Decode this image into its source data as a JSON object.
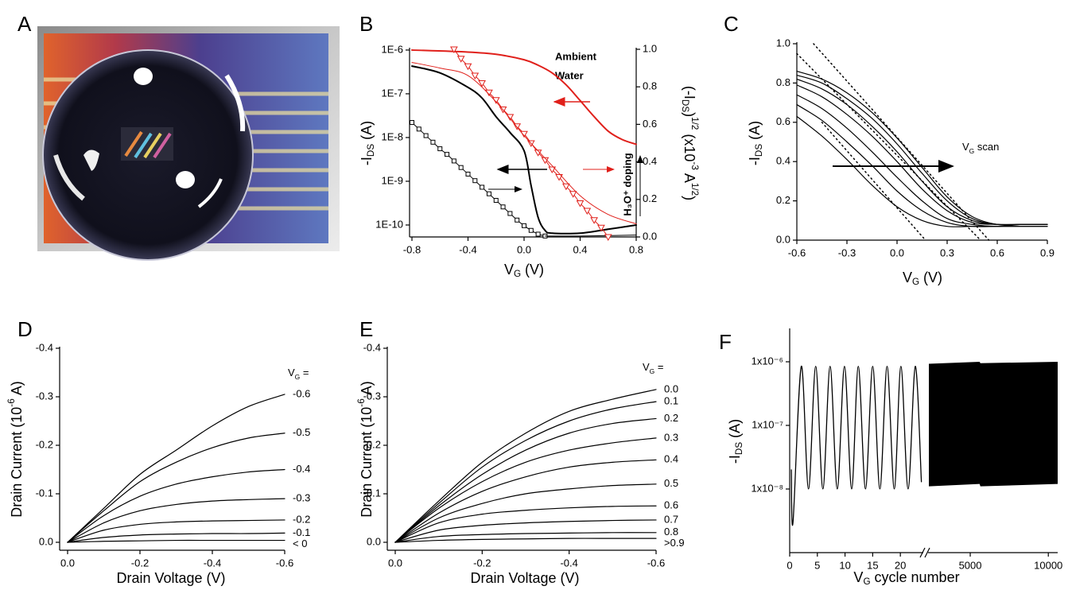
{
  "panel_labels": [
    "A",
    "B",
    "C",
    "D",
    "E",
    "F"
  ],
  "chart_data": [
    {
      "type": "line",
      "log_y": true,
      "smooth": true,
      "xlabel": [
        {
          "text": "V"
        },
        {
          "sub": "G"
        },
        {
          "text": " (V)"
        }
      ],
      "ylabel": [
        {
          "text": "-I"
        },
        {
          "sub": "DS"
        },
        {
          "text": " (A)"
        }
      ],
      "y2label": [
        {
          "text": "(-I"
        },
        {
          "sub": "DS"
        },
        {
          "text": ")"
        },
        {
          "sup": "1/2"
        },
        {
          "text": " (x10"
        },
        {
          "sup": "-3"
        },
        {
          "text": " A"
        },
        {
          "sup": "1/2"
        },
        {
          "text": ")"
        }
      ],
      "xlim": [
        -0.8,
        0.8
      ],
      "xticks": [
        -0.8,
        -0.4,
        {
          "value": 0,
          "label": "0.0"
        },
        0.4,
        0.8
      ],
      "ylim": [
        5.33e-11,
        1.04e-06
      ],
      "yticks": [
        {
          "value": 1e-10,
          "label": "1E-10"
        },
        {
          "value": 1e-09,
          "label": "1E-9"
        },
        {
          "value": 1e-08,
          "label": "1E-8"
        },
        {
          "value": 1e-07,
          "label": "1E-7"
        },
        {
          "value": 1e-06,
          "label": "1E-6"
        }
      ],
      "y2lim": [
        0,
        1.0
      ],
      "y2ticks": [
        {
          "value": 0,
          "label": "0.0"
        },
        0.2,
        0.4,
        0.6,
        0.8,
        {
          "value": 1,
          "label": "1.0"
        }
      ],
      "annotations": [
        {
          "text": "Ambient",
          "color": "#000000"
        },
        {
          "text": "Water",
          "color": "#e0201b"
        },
        {
          "text": "H₃O⁺ doping",
          "color": "#000000"
        }
      ],
      "series": [
        {
          "color": "#000000",
          "line_width": 2,
          "x": [
            -0.8,
            -0.6,
            -0.4,
            -0.3,
            -0.2,
            -0.1,
            0,
            0.05,
            0.1,
            0.15,
            0.2,
            0.4,
            0.6,
            0.8
          ],
          "values": [
            4.3e-07,
            3e-07,
            1.4e-07,
            8e-08,
            3e-08,
            1.3e-08,
            5e-09,
            8e-10,
            1.5e-10,
            7.5e-11,
            6.5e-11,
            6.5e-11,
            8e-11,
            1e-10
          ]
        },
        {
          "color": "#e0201b",
          "line_width": 2,
          "x": [
            -0.8,
            -0.4,
            -0.2,
            0,
            0.1,
            0.2,
            0.3,
            0.4,
            0.5,
            0.6,
            0.7,
            0.8
          ],
          "values": [
            1e-06,
            9e-07,
            8e-07,
            6e-07,
            4.5e-07,
            3e-07,
            1.6e-07,
            7e-08,
            3e-08,
            1.4e-08,
            9e-09,
            7e-09
          ]
        },
        {
          "color": "#000000",
          "line_width": 1,
          "axis": "y2",
          "marker": "square",
          "x": [
            -0.8,
            -0.75,
            -0.7,
            -0.65,
            -0.6,
            -0.55,
            -0.5,
            -0.45,
            -0.4,
            -0.35,
            -0.3,
            -0.25,
            -0.2,
            -0.15,
            -0.1,
            -0.05,
            0,
            0.05,
            0.1,
            0.15
          ],
          "values": [
            0.61,
            0.575,
            0.54,
            0.505,
            0.47,
            0.44,
            0.405,
            0.37,
            0.335,
            0.3,
            0.265,
            0.23,
            0.195,
            0.16,
            0.125,
            0.09,
            0.06,
            0.035,
            0.015,
            0.005
          ]
        },
        {
          "color": "#000000",
          "line_width": 1,
          "axis": "y2",
          "x": [
            0.15,
            0.4,
            0.8
          ],
          "values": [
            0.005,
            0.005,
            0.01
          ]
        },
        {
          "color": "#e0201b",
          "line_width": 1,
          "axis": "y2",
          "marker": "triangle",
          "x": [
            -0.5,
            -0.45,
            -0.4,
            -0.35,
            -0.3,
            -0.25,
            -0.2,
            -0.15,
            -0.1,
            -0.05,
            0,
            0.05,
            0.1,
            0.15,
            0.2,
            0.25,
            0.3,
            0.35,
            0.4,
            0.45,
            0.5,
            0.55,
            0.6
          ],
          "values": [
            1.0,
            0.95,
            0.91,
            0.86,
            0.82,
            0.77,
            0.73,
            0.68,
            0.64,
            0.59,
            0.55,
            0.5,
            0.45,
            0.41,
            0.36,
            0.32,
            0.27,
            0.23,
            0.18,
            0.14,
            0.09,
            0.05,
            0.0
          ]
        },
        {
          "color": "#e0201b",
          "line_width": 1,
          "axis": "y2",
          "x": [
            -0.8,
            -0.6,
            -0.4,
            -0.2,
            0,
            0.2,
            0.4,
            0.6,
            0.8
          ],
          "values": [
            0.93,
            0.9,
            0.86,
            0.72,
            0.54,
            0.38,
            0.22,
            0.12,
            0.07
          ]
        }
      ]
    },
    {
      "type": "line",
      "smooth": true,
      "xlabel": [
        {
          "text": "V"
        },
        {
          "sub": "G"
        },
        {
          "text": " (V)"
        }
      ],
      "ylabel": [
        {
          "text": "-I"
        },
        {
          "sub": "DS"
        },
        {
          "text": " (A)"
        }
      ],
      "xlim": [
        -0.6,
        0.9
      ],
      "xticks": [
        -0.6,
        -0.3,
        {
          "value": 0,
          "label": "0.0"
        },
        0.3,
        0.6,
        0.9
      ],
      "ylim": [
        0,
        1.0
      ],
      "yticks": [
        {
          "value": 0,
          "label": "0.0"
        },
        0.2,
        0.4,
        0.6,
        0.8,
        {
          "value": 1,
          "label": "1.0"
        }
      ],
      "annotations": [
        {
          "text": [
            {
              "text": "V"
            },
            {
              "sub": "G"
            },
            {
              "text": " scan"
            }
          ],
          "color": "#000000"
        }
      ],
      "x": [
        -0.6,
        -0.45,
        -0.3,
        -0.15,
        0,
        0.15,
        0.3,
        0.45,
        0.6,
        0.75,
        0.9
      ],
      "series": [
        {
          "color": "#000000",
          "line_width": 1.2,
          "values": [
            0.86,
            0.82,
            0.75,
            0.65,
            0.52,
            0.37,
            0.22,
            0.12,
            0.08,
            0.08,
            0.08
          ]
        },
        {
          "color": "#000000",
          "line_width": 1.2,
          "values": [
            0.84,
            0.8,
            0.72,
            0.62,
            0.49,
            0.34,
            0.2,
            0.11,
            0.08,
            0.08,
            0.08
          ]
        },
        {
          "color": "#000000",
          "line_width": 1.2,
          "values": [
            0.82,
            0.77,
            0.69,
            0.58,
            0.45,
            0.3,
            0.17,
            0.1,
            0.08,
            0.08,
            0.08
          ]
        },
        {
          "color": "#000000",
          "line_width": 1.2,
          "values": [
            0.79,
            0.73,
            0.64,
            0.53,
            0.4,
            0.26,
            0.15,
            0.09,
            0.08,
            0.08,
            0.08
          ]
        },
        {
          "color": "#000000",
          "line_width": 1.2,
          "values": [
            0.74,
            0.67,
            0.57,
            0.45,
            0.32,
            0.2,
            0.11,
            0.08,
            0.07,
            0.08,
            0.08
          ]
        },
        {
          "color": "#000000",
          "line_width": 1.2,
          "values": [
            0.69,
            0.61,
            0.5,
            0.38,
            0.25,
            0.15,
            0.09,
            0.07,
            0.07,
            0.07,
            0.07
          ]
        },
        {
          "color": "#000000",
          "line_width": 1.2,
          "values": [
            0.63,
            0.53,
            0.41,
            0.28,
            0.17,
            0.1,
            0.07,
            0.07,
            0.07,
            0.07,
            0.07
          ]
        },
        {
          "color": "#000000",
          "line_width": 1.5,
          "dash": "dotted",
          "x": [
            -0.5,
            0.55
          ],
          "values": [
            1.0,
            0.0
          ]
        },
        {
          "color": "#000000",
          "line_width": 1.5,
          "dash": "dotted",
          "x": [
            -0.6,
            0.5
          ],
          "values": [
            0.95,
            0.0
          ]
        },
        {
          "color": "#000000",
          "line_width": 1.5,
          "dash": "dotted",
          "x": [
            -0.45,
            0.17
          ],
          "values": [
            0.6,
            0.0
          ]
        }
      ]
    },
    {
      "type": "line",
      "smooth": true,
      "direct_labels": true,
      "xlabel": [
        {
          "text": "Drain Voltage (V)"
        }
      ],
      "ylabel": [
        {
          "text": "Drain Current (10"
        },
        {
          "sup": "-6"
        },
        {
          "text": " A)"
        }
      ],
      "legend_title": [
        {
          "text": "V"
        },
        {
          "sub": "G"
        },
        {
          "text": " ="
        }
      ],
      "xlim": [
        0,
        -0.6
      ],
      "xticks": [
        {
          "value": 0,
          "label": "0.0"
        },
        -0.2,
        -0.4,
        -0.6
      ],
      "ylim": [
        0,
        -0.4
      ],
      "yticks": [
        {
          "value": 0,
          "label": "0.0"
        },
        -0.1,
        -0.2,
        -0.3,
        -0.4
      ],
      "x": [
        0,
        -0.1,
        -0.2,
        -0.3,
        -0.4,
        -0.5,
        -0.6
      ],
      "series": [
        {
          "name": "-0.6",
          "color": "#000000",
          "values": [
            0,
            -0.07,
            -0.14,
            -0.19,
            -0.24,
            -0.28,
            -0.305
          ]
        },
        {
          "name": "-0.5",
          "color": "#000000",
          "values": [
            0,
            -0.065,
            -0.125,
            -0.165,
            -0.195,
            -0.215,
            -0.225
          ]
        },
        {
          "name": "-0.4",
          "color": "#000000",
          "values": [
            0,
            -0.055,
            -0.095,
            -0.12,
            -0.135,
            -0.145,
            -0.15
          ]
        },
        {
          "name": "-0.3",
          "color": "#000000",
          "values": [
            0,
            -0.04,
            -0.065,
            -0.078,
            -0.085,
            -0.088,
            -0.09
          ]
        },
        {
          "name": "-0.2",
          "color": "#000000",
          "values": [
            0,
            -0.025,
            -0.037,
            -0.042,
            -0.044,
            -0.045,
            -0.046
          ]
        },
        {
          "name": "-0.1",
          "color": "#000000",
          "values": [
            0,
            -0.01,
            -0.015,
            -0.017,
            -0.018,
            -0.018,
            -0.019
          ]
        },
        {
          "name": "< 0",
          "color": "#000000",
          "values": [
            0,
            -0.002,
            -0.003,
            -0.004,
            -0.004,
            -0.004,
            -0.004
          ]
        }
      ]
    },
    {
      "type": "line",
      "smooth": true,
      "direct_labels": true,
      "xlabel": [
        {
          "text": "Drain Voltage (V)"
        }
      ],
      "ylabel": [
        {
          "text": "Drain Current (10"
        },
        {
          "sup": "-6"
        },
        {
          "text": " A)"
        }
      ],
      "legend_title": [
        {
          "text": "V"
        },
        {
          "sub": "G"
        },
        {
          "text": " ="
        }
      ],
      "xlim": [
        0,
        -0.6
      ],
      "xticks": [
        {
          "value": 0,
          "label": "0.0"
        },
        -0.2,
        -0.4,
        -0.6
      ],
      "ylim": [
        0,
        -0.4
      ],
      "yticks": [
        {
          "value": 0,
          "label": "0.0"
        },
        -0.1,
        -0.2,
        -0.3,
        -0.4
      ],
      "x": [
        0,
        -0.1,
        -0.2,
        -0.3,
        -0.4,
        -0.5,
        -0.6
      ],
      "series": [
        {
          "name": "0.0",
          "color": "#000000",
          "values": [
            0,
            -0.085,
            -0.165,
            -0.225,
            -0.27,
            -0.295,
            -0.315
          ]
        },
        {
          "name": "0.1",
          "color": "#000000",
          "values": [
            0,
            -0.08,
            -0.155,
            -0.21,
            -0.25,
            -0.275,
            -0.29
          ]
        },
        {
          "name": "0.2",
          "color": "#000000",
          "values": [
            0,
            -0.075,
            -0.14,
            -0.19,
            -0.225,
            -0.245,
            -0.255
          ]
        },
        {
          "name": "0.3",
          "color": "#000000",
          "values": [
            0,
            -0.07,
            -0.125,
            -0.165,
            -0.19,
            -0.205,
            -0.215
          ]
        },
        {
          "name": "0.4",
          "color": "#000000",
          "values": [
            0,
            -0.06,
            -0.105,
            -0.135,
            -0.155,
            -0.165,
            -0.17
          ]
        },
        {
          "name": "0.5",
          "color": "#000000",
          "values": [
            0,
            -0.05,
            -0.08,
            -0.1,
            -0.11,
            -0.117,
            -0.12
          ]
        },
        {
          "name": "0.6",
          "color": "#000000",
          "values": [
            0,
            -0.04,
            -0.058,
            -0.066,
            -0.071,
            -0.074,
            -0.075
          ]
        },
        {
          "name": "0.7",
          "color": "#000000",
          "values": [
            0,
            -0.025,
            -0.035,
            -0.04,
            -0.043,
            -0.045,
            -0.046
          ]
        },
        {
          "name": "0.8",
          "color": "#000000",
          "values": [
            0,
            -0.012,
            -0.016,
            -0.018,
            -0.019,
            -0.02,
            -0.02
          ]
        },
        {
          "name": ">0.9",
          "color": "#000000",
          "values": [
            0,
            -0.004,
            -0.006,
            -0.007,
            -0.008,
            -0.008,
            -0.008
          ]
        }
      ]
    },
    {
      "type": "line",
      "log_y": true,
      "smooth": true,
      "xlabel": [
        {
          "text": "V"
        },
        {
          "sub": "G"
        },
        {
          "text": " cycle number"
        }
      ],
      "ylabel": [
        {
          "text": "-I"
        },
        {
          "sub": "DS"
        },
        {
          "text": " (A)"
        }
      ],
      "broken_xlim": [
        [
          0,
          24
        ],
        [
          2350,
          10600
        ]
      ],
      "xticks": [
        0,
        5,
        10,
        15,
        20,
        5000,
        10000
      ],
      "ylim": [
        1e-09,
        3.16e-06
      ],
      "yticks": [
        {
          "value": 1e-08,
          "label": "1x10⁻⁸"
        },
        {
          "value": 1e-07,
          "label": "1x10⁻⁷"
        },
        {
          "value": 1e-06,
          "label": "1x10⁻⁶"
        }
      ],
      "series": [
        {
          "color": "#000000",
          "line_width": 1.3,
          "x": [
            0.3,
            0.6,
            2.1,
            3.4,
            4.7,
            6.0,
            7.3,
            8.6,
            9.9,
            11.2,
            12.4,
            13.7,
            15.0,
            16.3,
            17.6,
            18.9,
            20.1,
            21.4,
            22.7,
            23.8
          ],
          "values": [
            2e-08,
            3e-09,
            8.5e-07,
            1e-08,
            8.5e-07,
            1e-08,
            8.5e-07,
            1e-08,
            8.5e-07,
            1e-08,
            8.5e-07,
            1e-08,
            8.5e-07,
            1e-08,
            8.5e-07,
            1e-08,
            8.5e-07,
            1e-08,
            8.5e-07,
            1.3e-08
          ]
        }
      ],
      "bands": [
        {
          "color": "#000000",
          "x": [
            2350,
            5600,
            5650,
            10600
          ],
          "high": [
            9.3e-07,
            1e-06,
            9.5e-07,
            1e-06
          ],
          "low": [
            1.1e-08,
            1.2e-08,
            1.1e-08,
            1.2e-08
          ]
        }
      ]
    }
  ]
}
